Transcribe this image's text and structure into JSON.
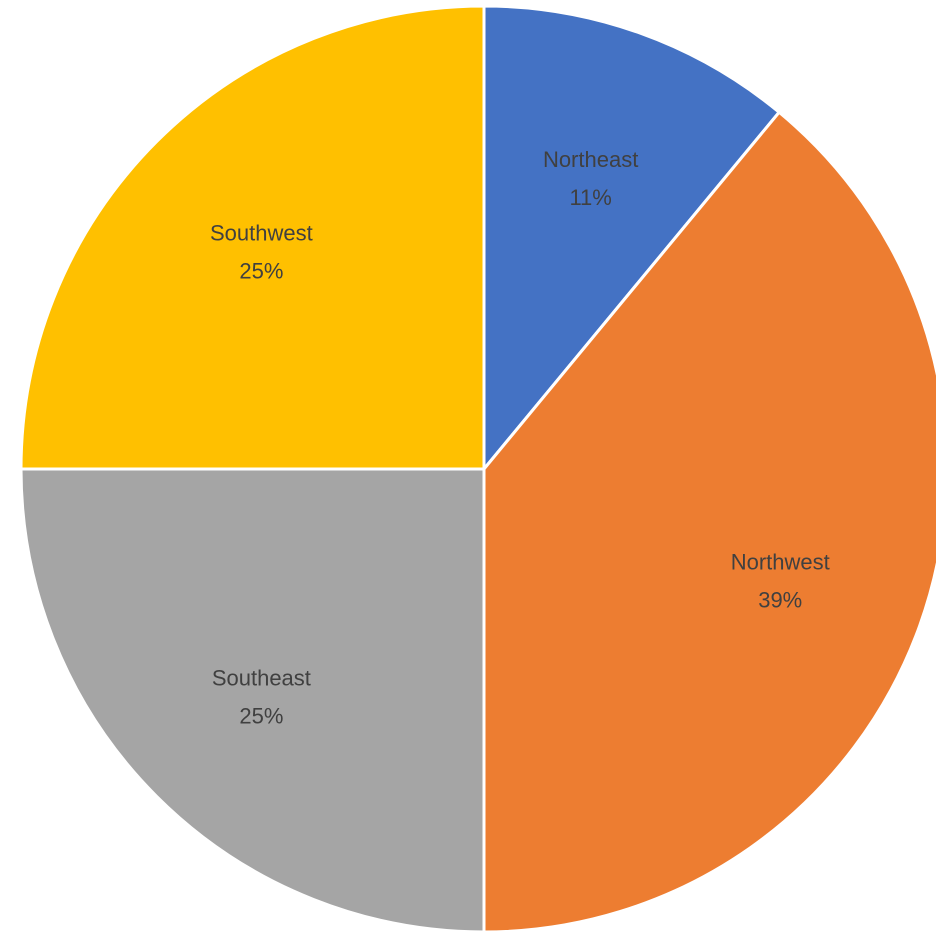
{
  "chart_data": {
    "type": "pie",
    "categories": [
      "Northeast",
      "Northwest",
      "Southeast",
      "Southwest"
    ],
    "values": [
      11,
      39,
      25,
      25
    ],
    "value_labels": [
      "11%",
      "39%",
      "25%",
      "25%"
    ],
    "colors": [
      "#4472C4",
      "#ED7D31",
      "#A5A5A5",
      "#FFC000"
    ],
    "legend": "none",
    "data_labels": "category name and percent inside slices"
  }
}
